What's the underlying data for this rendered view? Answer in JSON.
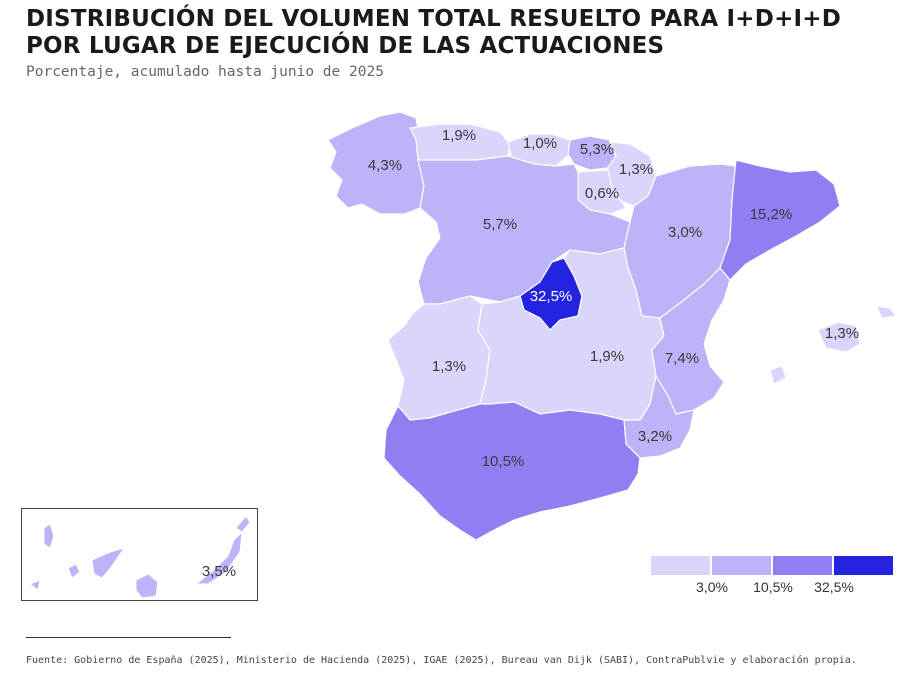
{
  "title": "DISTRIBUCIÓN DEL VOLUMEN TOTAL RESUELTO PARA I+D+I+D POR LUGAR DE EJECUCIÓN DE LAS ACTUACIONES",
  "subtitle": "Porcentaje, acumulado hasta junio de 2025",
  "colors": {
    "lightest": "#d9d5fb",
    "light": "#bcb3f8",
    "medium": "#8f7ff2",
    "dark": "#2323e0",
    "stroke": "#ffffff"
  },
  "regions": [
    {
      "name": "Galicia",
      "value": "4,3%",
      "bin": "light"
    },
    {
      "name": "Asturias",
      "value": "1,9%",
      "bin": "lightest"
    },
    {
      "name": "Cantabria",
      "value": "1,0%",
      "bin": "lightest"
    },
    {
      "name": "País Vasco",
      "value": "5,3%",
      "bin": "light"
    },
    {
      "name": "Navarra",
      "value": "1,3%",
      "bin": "lightest"
    },
    {
      "name": "La Rioja",
      "value": "0,6%",
      "bin": "lightest"
    },
    {
      "name": "Castilla y León",
      "value": "5,7%",
      "bin": "light"
    },
    {
      "name": "Aragón",
      "value": "3,0%",
      "bin": "light"
    },
    {
      "name": "Cataluña",
      "value": "15,2%",
      "bin": "medium"
    },
    {
      "name": "Madrid",
      "value": "32,5%",
      "bin": "dark"
    },
    {
      "name": "Extremadura",
      "value": "1,3%",
      "bin": "lightest"
    },
    {
      "name": "Castilla-La Mancha",
      "value": "1,9%",
      "bin": "lightest"
    },
    {
      "name": "Comunitat Valenciana",
      "value": "7,4%",
      "bin": "light"
    },
    {
      "name": "Murcia",
      "value": "3,2%",
      "bin": "light"
    },
    {
      "name": "Andalucía",
      "value": "10,5%",
      "bin": "medium"
    },
    {
      "name": "Illes Balears",
      "value": "1,3%",
      "bin": "lightest"
    },
    {
      "name": "Canarias",
      "value": "3,5%",
      "bin": "light"
    }
  ],
  "legend": {
    "ticks": [
      "3,0%",
      "10,5%",
      "32,5%"
    ]
  },
  "source": "Fuente: Gobierno de España (2025), Ministerio de Hacienda (2025), IGAE (2025), Bureau van Dijk (SABI), ContraPublvie y elaboración propia."
}
